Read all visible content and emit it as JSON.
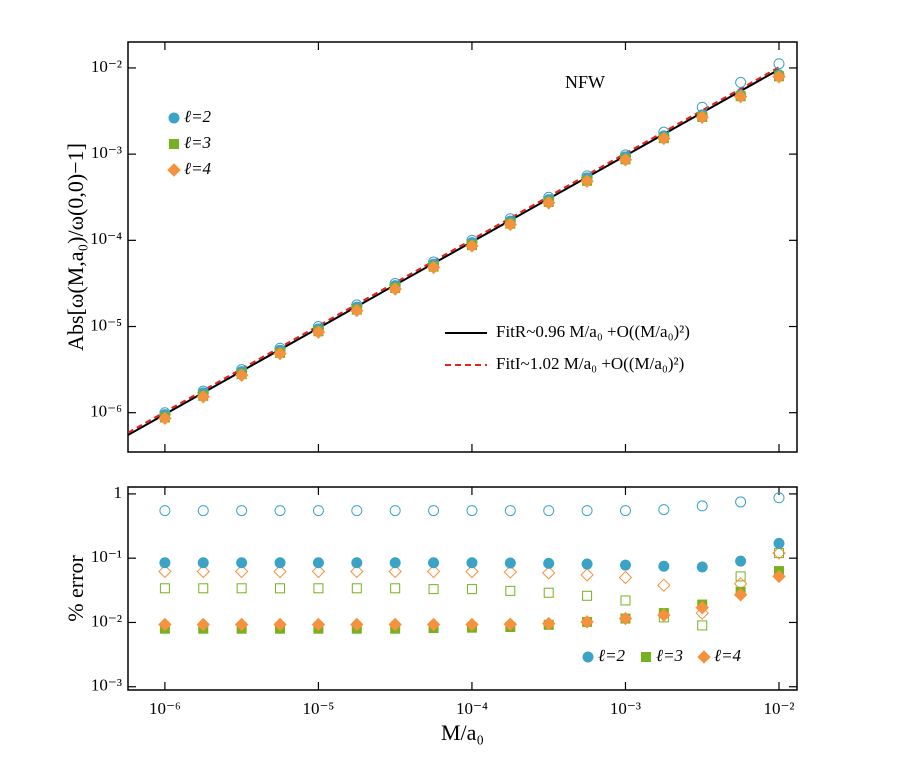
{
  "chart_data": [
    {
      "type": "scatter",
      "xscale": "log",
      "yscale": "log",
      "ylabel": "Abs[ω(M,a₀)/ω(0,0)−1]",
      "annotation": "NFW",
      "legend": "upper left",
      "xlim": [
        5.75e-07,
        0.0131
      ],
      "ylim": [
        3.5e-07,
        0.02
      ],
      "xticks": [
        {
          "value": 1e-06,
          "label": "10⁻⁶"
        },
        {
          "value": 1e-05,
          "label": "10⁻⁵"
        },
        {
          "value": 0.0001,
          "label": "10⁻⁴"
        },
        {
          "value": 0.001,
          "label": "10⁻³"
        },
        {
          "value": 0.01,
          "label": "10⁻²"
        }
      ],
      "yticks": [
        {
          "value": 1e-06,
          "label": "10⁻⁶"
        },
        {
          "value": 1e-05,
          "label": "10⁻⁵"
        },
        {
          "value": 0.0001,
          "label": "10⁻⁴"
        },
        {
          "value": 0.001,
          "label": "10⁻³"
        },
        {
          "value": 0.01,
          "label": "10⁻²"
        }
      ],
      "x": [
        1e-06,
        1.778e-06,
        3.162e-06,
        5.623e-06,
        1e-05,
        1.778e-05,
        3.162e-05,
        5.623e-05,
        0.0001,
        0.0001778,
        0.0003162,
        0.0005623,
        0.001,
        0.001778,
        0.003162,
        0.005623,
        0.01
      ],
      "series": [
        {
          "color": "#3ba3c6",
          "marker": "circle",
          "filled": false,
          "values": [
            1e-06,
            1.78e-06,
            3.16e-06,
            5.6e-06,
            1e-05,
            1.78e-05,
            3.16e-05,
            5.6e-05,
            0.0001,
            0.000178,
            0.000316,
            0.00056,
            0.00098,
            0.0018,
            0.0035,
            0.0068,
            0.0112
          ]
        },
        {
          "name": "ℓ=2",
          "color": "#3ba3c6",
          "marker": "circle",
          "filled": true,
          "values": [
            9.5e-07,
            1.7e-06,
            3e-06,
            5.3e-06,
            9.4e-06,
            1.68e-05,
            2.98e-05,
            5.3e-05,
            9.4e-05,
            0.000167,
            0.000297,
            0.00053,
            0.00093,
            0.00163,
            0.00285,
            0.0049,
            0.0083
          ]
        },
        {
          "name": "ℓ=3",
          "color": "#76b21f",
          "marker": "square",
          "filled": true,
          "values": [
            8.8e-07,
            1.57e-06,
            2.8e-06,
            4.95e-06,
            8.8e-06,
            1.57e-05,
            2.8e-05,
            4.95e-05,
            8.8e-05,
            0.000156,
            0.000278,
            0.00049,
            0.00087,
            0.00153,
            0.0027,
            0.0047,
            0.008
          ]
        },
        {
          "name": "ℓ=4",
          "color": "#f5923e",
          "marker": "diamond",
          "filled": true,
          "values": [
            8.6e-07,
            1.53e-06,
            2.72e-06,
            4.85e-06,
            8.6e-06,
            1.53e-05,
            2.72e-05,
            4.85e-05,
            8.6e-05,
            0.000153,
            0.000272,
            0.000485,
            0.00086,
            0.00152,
            0.00268,
            0.00465,
            0.0079
          ]
        }
      ],
      "lines": [
        {
          "name": "FitR~0.96 M/a₀ +O((M/a₀)²)",
          "color": "#000000",
          "dashed": false,
          "x": [
            5.75e-07,
            0.01
          ],
          "values": [
            5.52e-07,
            0.0096
          ]
        },
        {
          "name": "FitI~1.02 M/a₀ +O((M/a₀)²)",
          "color": "#e8221c",
          "dashed": true,
          "x": [
            5.75e-07,
            0.01
          ],
          "values": [
            5.87e-07,
            0.0102
          ]
        }
      ]
    },
    {
      "type": "scatter",
      "xscale": "log",
      "yscale": "log",
      "ylabel": "% error",
      "xlabel": "M/a₀",
      "legend": "lower right",
      "xlim": [
        5.75e-07,
        0.0131
      ],
      "ylim": [
        0.00089,
        1.28
      ],
      "xticks": [
        {
          "value": 1e-06,
          "label": "10⁻⁶"
        },
        {
          "value": 1e-05,
          "label": "10⁻⁵"
        },
        {
          "value": 0.0001,
          "label": "10⁻⁴"
        },
        {
          "value": 0.001,
          "label": "10⁻³"
        },
        {
          "value": 0.01,
          "label": "10⁻²"
        }
      ],
      "yticks": [
        {
          "value": 0.001,
          "label": "10⁻³"
        },
        {
          "value": 0.01,
          "label": "10⁻²"
        },
        {
          "value": 0.1,
          "label": "10⁻¹"
        },
        1
      ],
      "x": [
        1e-06,
        1.778e-06,
        3.162e-06,
        5.623e-06,
        1e-05,
        1.778e-05,
        3.162e-05,
        5.623e-05,
        0.0001,
        0.0001778,
        0.0003162,
        0.0005623,
        0.001,
        0.001778,
        0.003162,
        0.005623,
        0.01
      ],
      "series": [
        {
          "color": "#3ba3c6",
          "marker": "circle",
          "filled": false,
          "values": [
            0.55,
            0.55,
            0.55,
            0.55,
            0.55,
            0.55,
            0.55,
            0.55,
            0.55,
            0.55,
            0.55,
            0.55,
            0.55,
            0.57,
            0.65,
            0.75,
            0.87
          ]
        },
        {
          "color": "#76b21f",
          "marker": "square",
          "filled": false,
          "values": [
            0.034,
            0.034,
            0.034,
            0.034,
            0.034,
            0.034,
            0.034,
            0.033,
            0.033,
            0.031,
            0.029,
            0.026,
            0.022,
            0.012,
            0.009,
            0.052,
            0.12
          ]
        },
        {
          "color": "#f5923e",
          "marker": "diamond",
          "filled": false,
          "values": [
            0.062,
            0.062,
            0.062,
            0.062,
            0.062,
            0.062,
            0.062,
            0.062,
            0.062,
            0.061,
            0.059,
            0.055,
            0.05,
            0.038,
            0.014,
            0.04,
            0.12
          ]
        },
        {
          "name": "ℓ=2",
          "color": "#3ba3c6",
          "marker": "circle",
          "filled": true,
          "values": [
            0.085,
            0.085,
            0.085,
            0.085,
            0.085,
            0.085,
            0.085,
            0.085,
            0.085,
            0.084,
            0.083,
            0.081,
            0.078,
            0.075,
            0.073,
            0.09,
            0.17
          ]
        },
        {
          "name": "ℓ=3",
          "color": "#76b21f",
          "marker": "square",
          "filled": true,
          "values": [
            0.008,
            0.008,
            0.008,
            0.008,
            0.008,
            0.008,
            0.008,
            0.0082,
            0.0083,
            0.0085,
            0.0092,
            0.0102,
            0.0115,
            0.014,
            0.019,
            0.03,
            0.063
          ]
        },
        {
          "name": "ℓ=4",
          "color": "#f5923e",
          "marker": "diamond",
          "filled": true,
          "values": [
            0.0093,
            0.0093,
            0.0093,
            0.0093,
            0.0093,
            0.0093,
            0.0093,
            0.0093,
            0.0093,
            0.0094,
            0.0096,
            0.0102,
            0.0115,
            0.013,
            0.017,
            0.027,
            0.052
          ]
        }
      ]
    }
  ]
}
